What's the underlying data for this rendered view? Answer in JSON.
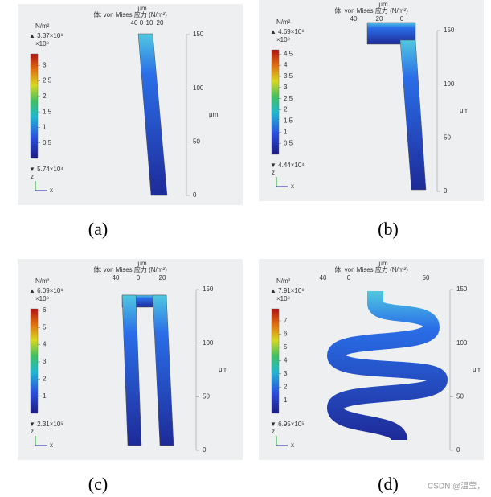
{
  "panels": [
    {
      "title": "体: von Mises 应力 (N/m²)",
      "axis_unit": "μm",
      "unit": "N/m²",
      "max": {
        "value": 3.37,
        "label": "▲ 3.37×10⁸"
      },
      "multiplier": "×10⁸",
      "ticks": [
        3,
        2.5,
        2,
        1.5,
        1,
        0.5
      ],
      "min": {
        "value": 0.000574,
        "label": "▼ 5.74×10⁴"
      },
      "top_ticks": [
        "40",
        "0",
        "10",
        "20"
      ],
      "zticks": [
        150,
        100,
        50,
        0
      ],
      "zlim": [
        0,
        150
      ],
      "triad": [
        "z",
        "x"
      ],
      "caption": "(a)"
    },
    {
      "title": "体: von Mises 应力 (N/m²)",
      "axis_unit": "μm",
      "unit": "N/m²",
      "max": {
        "value": 4.69,
        "label": "▲ 4.69×10⁸"
      },
      "multiplier": "×10⁸",
      "ticks": [
        4.5,
        4,
        3.5,
        3,
        2.5,
        2,
        1.5,
        1,
        0.5
      ],
      "min": {
        "value": 0.000444,
        "label": "▼ 4.44×10⁴"
      },
      "top_ticks": [
        "40",
        "20",
        "0"
      ],
      "zticks": [
        150,
        100,
        50,
        0
      ],
      "zlim": [
        0,
        150
      ],
      "triad": [
        "z",
        "x"
      ],
      "caption": "(b)"
    },
    {
      "title": "体: von Mises 应力 (N/m²)",
      "axis_unit": "μm",
      "unit": "N/m²",
      "max": {
        "value": 6.09,
        "label": "▲ 6.09×10⁸"
      },
      "multiplier": "×10⁸",
      "ticks": [
        6,
        5,
        4,
        3,
        2,
        1
      ],
      "min": {
        "value": 0.00231,
        "label": "▼ 2.31×10⁵"
      },
      "top_ticks": [
        "40",
        "0",
        "20"
      ],
      "zticks": [
        150,
        100,
        50,
        0
      ],
      "zlim": [
        0,
        150
      ],
      "triad": [
        "z",
        "x"
      ],
      "caption": "(c)"
    },
    {
      "title": "体: von Mises 应力 (N/m²)",
      "axis_unit": "μm",
      "unit": "N/m²",
      "max": {
        "value": 7.91,
        "label": "▲ 7.91×10⁸"
      },
      "multiplier": "×10⁸",
      "ticks": [
        7,
        6,
        5,
        4,
        3,
        2,
        1
      ],
      "min": {
        "value": 0.00695,
        "label": "▼ 6.95×10⁵"
      },
      "top_ticks": [
        "40",
        "0",
        "50"
      ],
      "zticks": [
        150,
        100,
        50,
        0
      ],
      "zlim": [
        0,
        150
      ],
      "triad": [
        "z",
        "x"
      ],
      "caption": "(d)"
    }
  ],
  "watermark": "CSDN @温莹，"
}
